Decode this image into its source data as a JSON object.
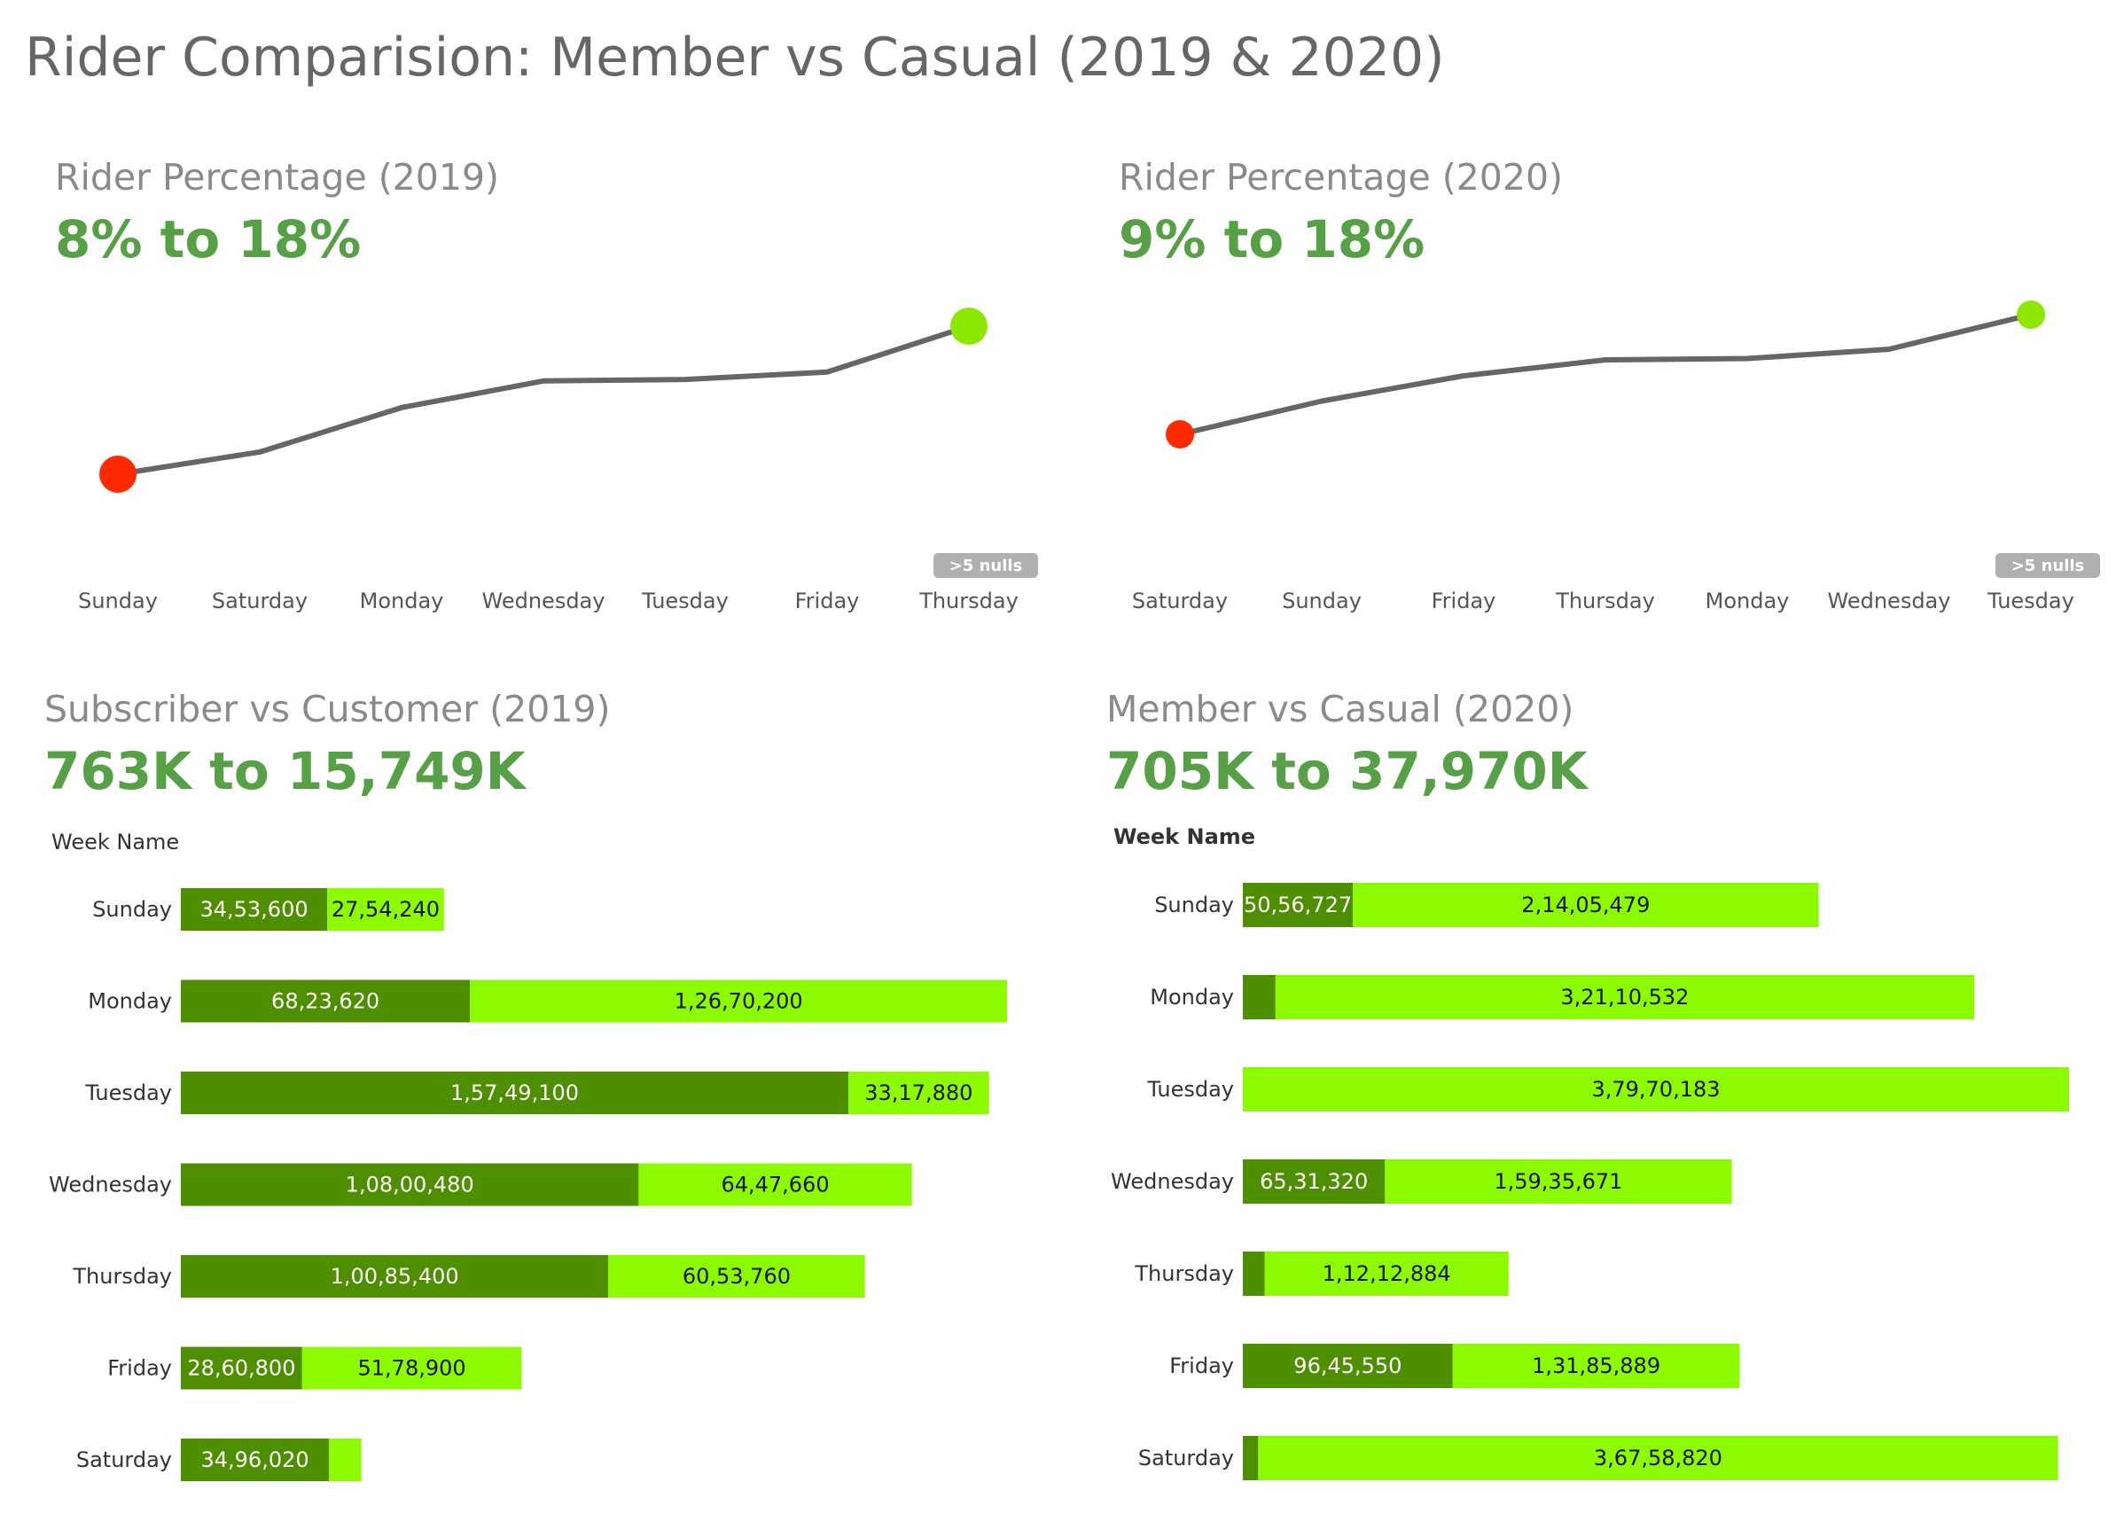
{
  "title": "Rider Comparision: Member vs Casual (2019 & 2020)",
  "colors": {
    "dark_green": "#4e8f00",
    "light_green": "#8cfb00",
    "line": "#666666",
    "low_point": "#ff2a00",
    "high_point": "#8ce800",
    "kpi": "#56a046",
    "nulls_badge": "#b0b0b0"
  },
  "panels": {
    "line2019": {
      "title": "Rider Percentage (2019)",
      "kpi": "8% to 18%",
      "nulls": ">5 nulls"
    },
    "line2020": {
      "title": "Rider Percentage (2020)",
      "kpi": "9% to 18%",
      "nulls": ">5 nulls"
    },
    "bar2019": {
      "title": "Subscriber vs Customer (2019)",
      "kpi": "763K to 15,749K",
      "header": "Week Name"
    },
    "bar2020": {
      "title": "Member vs Casual (2020)",
      "kpi": "705K to 37,970K",
      "header": "Week Name"
    }
  },
  "chart_data": [
    {
      "type": "line",
      "title": "Rider Percentage (2019)",
      "categories": [
        "Sunday",
        "Saturday",
        "Monday",
        "Wednesday",
        "Tuesday",
        "Friday",
        "Thursday"
      ],
      "values": [
        8.0,
        9.5,
        12.5,
        14.3,
        14.4,
        14.9,
        18.0
      ],
      "unit": "%"
    },
    {
      "type": "line",
      "title": "Rider Percentage (2020)",
      "categories": [
        "Saturday",
        "Sunday",
        "Friday",
        "Thursday",
        "Monday",
        "Wednesday",
        "Tuesday"
      ],
      "values": [
        9.0,
        11.5,
        13.4,
        14.6,
        14.7,
        15.4,
        18.0
      ],
      "unit": "%"
    },
    {
      "type": "bar",
      "title": "Subscriber vs Customer (2019)",
      "xlabel": "Week Name",
      "stacked": true,
      "orientation": "horizontal",
      "categories": [
        "Sunday",
        "Monday",
        "Tuesday",
        "Wednesday",
        "Thursday",
        "Friday",
        "Saturday"
      ],
      "series": [
        {
          "values": [
            3453600,
            6823620,
            15749100,
            10800480,
            10085400,
            2860800,
            3496020
          ],
          "labels": [
            "34,53,600",
            "68,23,620",
            "1,57,49,100",
            "1,08,00,480",
            "1,00,85,400",
            "28,60,800",
            "34,96,020"
          ]
        },
        {
          "values": [
            2754240,
            12670200,
            3317880,
            6447660,
            6053760,
            5178900,
            763000
          ],
          "labels": [
            "27,54,240",
            "1,26,70,200",
            "33,17,880",
            "64,47,660",
            "60,53,760",
            "51,78,900",
            ""
          ]
        }
      ]
    },
    {
      "type": "bar",
      "title": "Member vs Casual (2020)",
      "xlabel": "Week Name",
      "stacked": true,
      "orientation": "horizontal",
      "categories": [
        "Sunday",
        "Monday",
        "Tuesday",
        "Wednesday",
        "Thursday",
        "Friday",
        "Saturday"
      ],
      "series": [
        {
          "values": [
            5056727,
            1500000,
            0,
            6531320,
            1000000,
            9645550,
            705000
          ],
          "labels": [
            "50,56,727",
            "",
            "",
            "65,31,320",
            "",
            "96,45,550",
            ""
          ]
        },
        {
          "values": [
            21405479,
            32110532,
            37970183,
            15935671,
            11212884,
            13185889,
            36758820
          ],
          "labels": [
            "2,14,05,479",
            "3,21,10,532",
            "3,79,70,183",
            "1,59,35,671",
            "1,12,12,884",
            "1,31,85,889",
            "3,67,58,820"
          ]
        }
      ]
    }
  ]
}
